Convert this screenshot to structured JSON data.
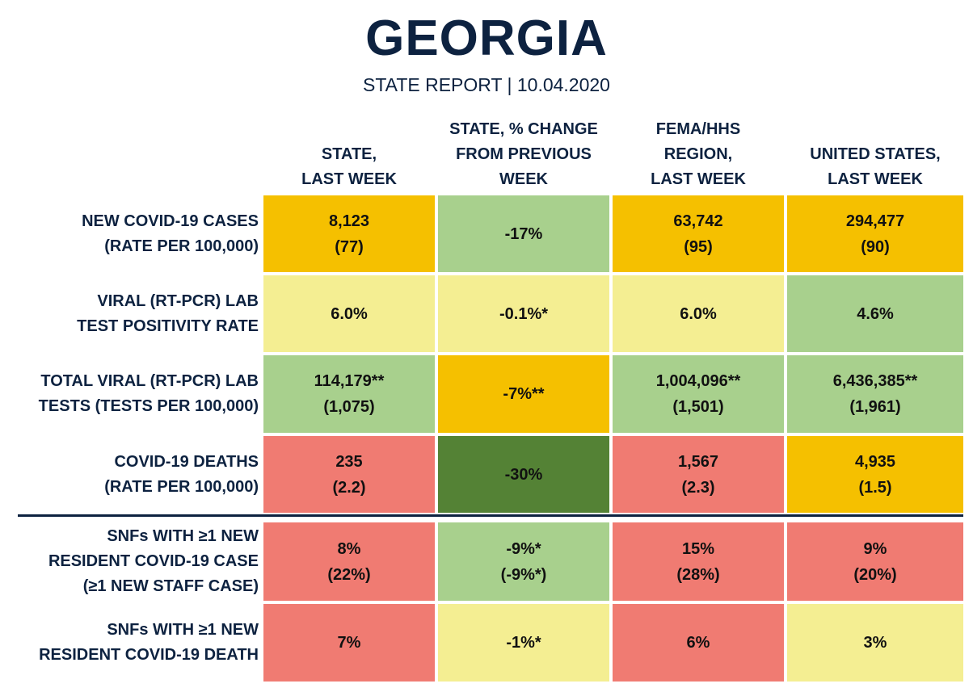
{
  "header": {
    "title": "GEORGIA",
    "subtitle": "STATE REPORT | 10.04.2020"
  },
  "columns": [
    {
      "line1": "STATE,",
      "line2": "LAST WEEK"
    },
    {
      "line1": "STATE, % CHANGE",
      "line2": "FROM PREVIOUS",
      "line3": "WEEK"
    },
    {
      "line1": "FEMA/HHS",
      "line2": "REGION,",
      "line3": "LAST WEEK"
    },
    {
      "line1": "UNITED STATES,",
      "line2": "LAST WEEK"
    }
  ],
  "rows": [
    {
      "label": {
        "line1": "NEW COVID-19 CASES",
        "line2": "(RATE PER 100,000)"
      },
      "cells": [
        {
          "v1": "8,123",
          "v2": "(77)",
          "color": "#f5c000"
        },
        {
          "v1": "-17%",
          "color": "#a8d08d"
        },
        {
          "v1": "63,742",
          "v2": "(95)",
          "color": "#f5c000"
        },
        {
          "v1": "294,477",
          "v2": "(90)",
          "color": "#f5c000"
        }
      ]
    },
    {
      "label": {
        "line1": "VIRAL (RT-PCR) LAB",
        "line2": "TEST POSITIVITY RATE"
      },
      "cells": [
        {
          "v1": "6.0%",
          "color": "#f4ee92"
        },
        {
          "v1": "-0.1%*",
          "color": "#f4ee92"
        },
        {
          "v1": "6.0%",
          "color": "#f4ee92"
        },
        {
          "v1": "4.6%",
          "color": "#a8d08d"
        }
      ]
    },
    {
      "label": {
        "line1": "TOTAL VIRAL (RT-PCR) LAB",
        "line2": "TESTS (TESTS PER 100,000)"
      },
      "cells": [
        {
          "v1": "114,179**",
          "v2": "(1,075)",
          "color": "#a8d08d"
        },
        {
          "v1": "-7%**",
          "color": "#f5c000"
        },
        {
          "v1": "1,004,096**",
          "v2": "(1,501)",
          "color": "#a8d08d"
        },
        {
          "v1": "6,436,385**",
          "v2": "(1,961)",
          "color": "#a8d08d"
        }
      ]
    },
    {
      "label": {
        "line1": "COVID-19 DEATHS",
        "line2": "(RATE PER 100,000)"
      },
      "cells": [
        {
          "v1": "235",
          "v2": "(2.2)",
          "color": "#f07b72"
        },
        {
          "v1": "-30%",
          "color": "#548235"
        },
        {
          "v1": "1,567",
          "v2": "(2.3)",
          "color": "#f07b72"
        },
        {
          "v1": "4,935",
          "v2": "(1.5)",
          "color": "#f5c000"
        }
      ]
    },
    {
      "label": {
        "line1": "SNFs WITH ≥1 NEW",
        "line2": "RESIDENT COVID-19 CASE",
        "line3": "(≥1 NEW STAFF CASE)"
      },
      "cells": [
        {
          "v1": "8%",
          "v2": "(22%)",
          "color": "#f07b72"
        },
        {
          "v1": "-9%*",
          "v2": "(-9%*)",
          "color": "#a8d08d"
        },
        {
          "v1": "15%",
          "v2": "(28%)",
          "color": "#f07b72"
        },
        {
          "v1": "9%",
          "v2": "(20%)",
          "color": "#f07b72"
        }
      ]
    },
    {
      "label": {
        "line1": "SNFs WITH ≥1 NEW",
        "line2": "RESIDENT COVID-19 DEATH"
      },
      "cells": [
        {
          "v1": "7%",
          "color": "#f07b72"
        },
        {
          "v1": "-1%*",
          "color": "#f4ee92"
        },
        {
          "v1": "6%",
          "color": "#f07b72"
        },
        {
          "v1": "3%",
          "color": "#f4ee92"
        }
      ]
    }
  ]
}
